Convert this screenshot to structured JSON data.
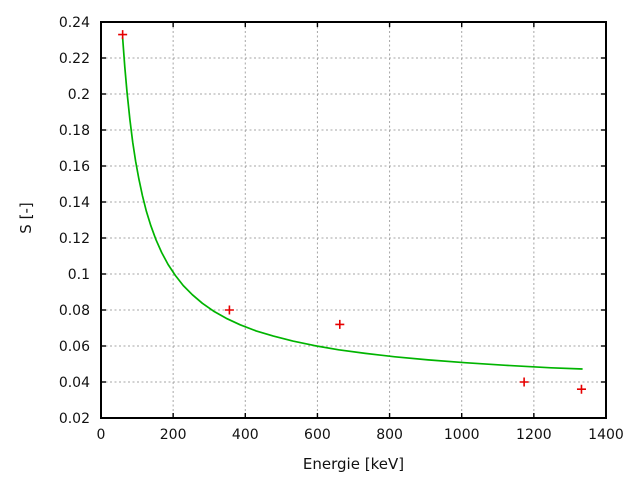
{
  "chart_data": {
    "type": "scatter",
    "title": "",
    "xlabel": "Energie [keV]",
    "ylabel": "S [-]",
    "xlim": [
      0,
      1400
    ],
    "ylim": [
      0.02,
      0.24
    ],
    "xticks": {
      "values": [
        0,
        200,
        400,
        600,
        800,
        1000,
        1200,
        1400
      ],
      "labels": [
        "0",
        "200",
        "400",
        "600",
        "800",
        "1000",
        "1200",
        "1400"
      ]
    },
    "yticks": {
      "values": [
        0.02,
        0.04,
        0.06,
        0.08,
        0.1,
        0.12,
        0.14,
        0.16,
        0.18,
        0.2,
        0.22,
        0.24
      ],
      "labels": [
        "0.02",
        "0.04",
        "0.06",
        "0.08",
        "0.1",
        "0.12",
        "0.14",
        "0.16",
        "0.18",
        "0.2",
        "0.22",
        "0.24"
      ]
    },
    "grid": "dashed",
    "legend_position": "none",
    "colors": {
      "background": "#ffffff",
      "axis": "#000000",
      "grid": "#a6a6a6",
      "text": "#111111",
      "data_points": "#e60000",
      "fit_curve": "#00b400"
    },
    "series": [
      {
        "name": "fit-curve",
        "type": "line",
        "color": "#00b400",
        "points": [
          [
            60,
            0.2315
          ],
          [
            66,
            0.215
          ],
          [
            72,
            0.2011
          ],
          [
            80,
            0.1858
          ],
          [
            88,
            0.1733
          ],
          [
            96,
            0.1627
          ],
          [
            105,
            0.1527
          ],
          [
            115,
            0.1434
          ],
          [
            126,
            0.1348
          ],
          [
            138,
            0.1269
          ],
          [
            152,
            0.1193
          ],
          [
            168,
            0.112
          ],
          [
            186,
            0.1053
          ],
          [
            206,
            0.0992
          ],
          [
            228,
            0.0936
          ],
          [
            253,
            0.0885
          ],
          [
            281,
            0.0837
          ],
          [
            312,
            0.0794
          ],
          [
            347,
            0.0754
          ],
          [
            386,
            0.0718
          ],
          [
            430,
            0.0684
          ],
          [
            478,
            0.0655
          ],
          [
            532,
            0.0627
          ],
          [
            592,
            0.0602
          ],
          [
            659,
            0.0579
          ],
          [
            733,
            0.0559
          ],
          [
            815,
            0.054
          ],
          [
            907,
            0.0523
          ],
          [
            1009,
            0.0507
          ],
          [
            1122,
            0.0493
          ],
          [
            1248,
            0.0479
          ],
          [
            1335,
            0.0472
          ]
        ]
      },
      {
        "name": "measured-points",
        "type": "scatter",
        "marker": "plus",
        "color": "#e60000",
        "points": [
          [
            60,
            0.233
          ],
          [
            356,
            0.08
          ],
          [
            662,
            0.072
          ],
          [
            1173,
            0.04
          ],
          [
            1332,
            0.036
          ]
        ]
      }
    ]
  }
}
